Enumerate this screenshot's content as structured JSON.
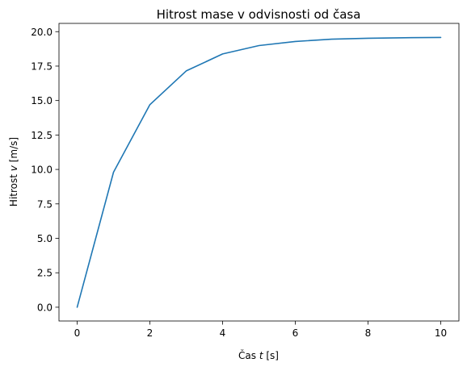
{
  "chart_data": {
    "type": "line",
    "title": "Hitrost mase v odvisnosti od časa",
    "xlabel": {
      "prefix": "Čas ",
      "var": "t",
      "suffix": " [s]"
    },
    "ylabel": {
      "prefix": "Hitrost ",
      "var": "v",
      "suffix": " [m/s]"
    },
    "xlim": [
      -0.5,
      10.5
    ],
    "ylim": [
      -1.0,
      20.6
    ],
    "xticks": [
      0,
      2,
      4,
      6,
      8,
      10
    ],
    "xtick_labels": [
      "0",
      "2",
      "4",
      "6",
      "8",
      "10"
    ],
    "yticks": [
      0,
      2.5,
      5,
      7.5,
      10,
      12.5,
      15,
      17.5,
      20
    ],
    "ytick_labels": [
      "0.0",
      "2.5",
      "5.0",
      "7.5",
      "10.0",
      "12.5",
      "15.0",
      "17.5",
      "20.0"
    ],
    "grid": false,
    "series": [
      {
        "color": "#1f77b4",
        "x": [
          0,
          1,
          2,
          3,
          4,
          5,
          6,
          7,
          8,
          9,
          10
        ],
        "y": [
          0.0,
          9.8,
          14.7,
          17.15,
          18.38,
          18.99,
          19.29,
          19.45,
          19.52,
          19.56,
          19.58
        ]
      }
    ]
  }
}
